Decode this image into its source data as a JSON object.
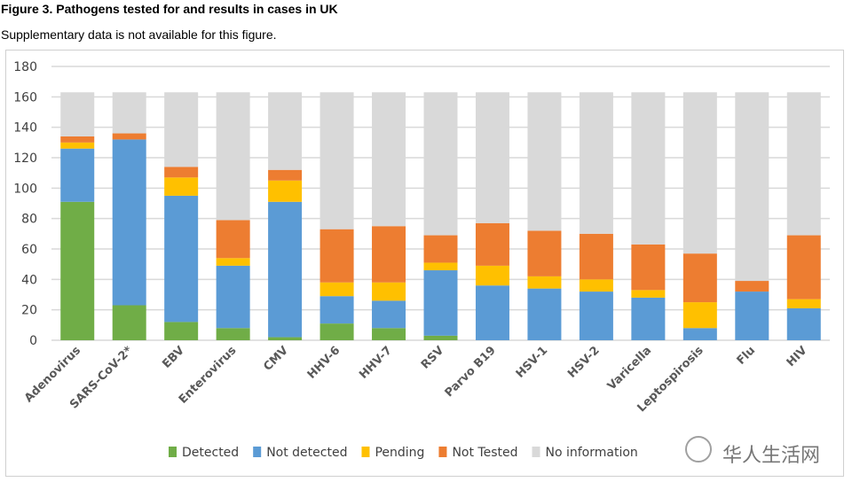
{
  "header": {
    "title": "Figure 3. Pathogens tested for and results in cases in UK",
    "subtitle": "Supplementary data is not available for this figure."
  },
  "watermark": "华人生活网",
  "chart_data": {
    "type": "bar",
    "stacked": true,
    "title": "",
    "xlabel": "",
    "ylabel": "",
    "ylim": [
      0,
      180
    ],
    "yticks": [
      0,
      20,
      40,
      60,
      80,
      100,
      120,
      140,
      160,
      180
    ],
    "grid": true,
    "legend_position": "bottom",
    "categories": [
      "Adenovirus",
      "SARS-CoV-2*",
      "EBV",
      "Enterovirus",
      "CMV",
      "HHV-6",
      "HHV-7",
      "RSV",
      "Parvo B19",
      "HSV-1",
      "HSV-2",
      "Varicella",
      "Leptospirosis",
      "Flu",
      "HIV"
    ],
    "series": [
      {
        "name": "Detected",
        "color": "#70ad47",
        "values": [
          91,
          23,
          12,
          8,
          2,
          11,
          8,
          3,
          0,
          0,
          0,
          0,
          0,
          0,
          0
        ]
      },
      {
        "name": "Not detected",
        "color": "#5b9bd5",
        "values": [
          35,
          109,
          83,
          41,
          89,
          18,
          18,
          43,
          36,
          34,
          32,
          28,
          8,
          32,
          21
        ]
      },
      {
        "name": "Pending",
        "color": "#ffc000",
        "values": [
          4,
          0,
          12,
          5,
          14,
          9,
          12,
          5,
          13,
          8,
          8,
          5,
          17,
          0,
          6
        ]
      },
      {
        "name": "Not Tested",
        "color": "#ed7d31",
        "values": [
          4,
          4,
          7,
          25,
          7,
          35,
          37,
          18,
          28,
          30,
          30,
          30,
          32,
          7,
          42
        ]
      },
      {
        "name": "No information",
        "color": "#d9d9d9",
        "values": [
          29,
          27,
          49,
          84,
          51,
          90,
          88,
          94,
          86,
          91,
          93,
          100,
          106,
          124,
          94
        ]
      }
    ]
  }
}
